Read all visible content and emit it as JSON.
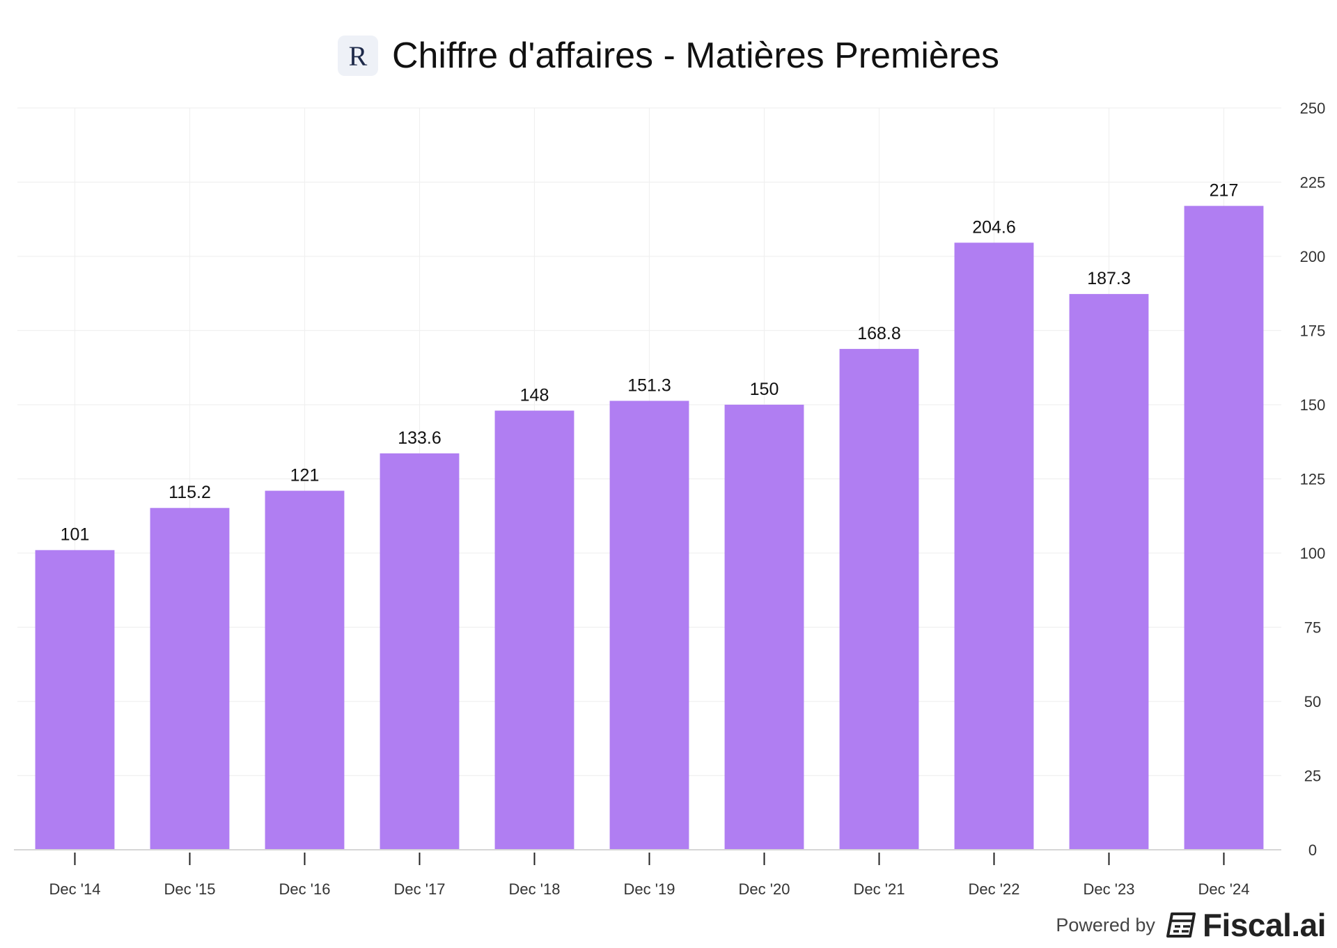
{
  "title": "Chiffre d'affaires - Matières Premières",
  "logo_letter": "R",
  "footer": {
    "powered_label": "Powered by",
    "brand": "Fiscal.ai",
    "logo_icon": "fiscal-ai-logo-icon"
  },
  "colors": {
    "bar": "#b07ef2",
    "grid": "#f0f0f0",
    "axis": "#d6d6d6",
    "tick_text": "#333333",
    "label_text": "#111111"
  },
  "chart_data": {
    "type": "bar",
    "categories": [
      "Dec '14",
      "Dec '15",
      "Dec '16",
      "Dec '17",
      "Dec '18",
      "Dec '19",
      "Dec '20",
      "Dec '21",
      "Dec '22",
      "Dec '23",
      "Dec '24"
    ],
    "series": [
      {
        "values": [
          101,
          115.2,
          121,
          133.6,
          148,
          151.3,
          150,
          168.8,
          204.6,
          187.3,
          217
        ],
        "labels": [
          "101",
          "115.2",
          "121",
          "133.6",
          "148",
          "151.3",
          "150",
          "168.8",
          "204.6",
          "187.3",
          "217"
        ]
      }
    ],
    "title": "Chiffre d'affaires - Matières Premières",
    "xlabel": "",
    "ylabel": "",
    "ylim": [
      0,
      250
    ],
    "yticks": [
      0,
      25,
      50,
      75,
      100,
      125,
      150,
      175,
      200,
      225,
      250
    ],
    "y_axis_position": "right",
    "grid": true,
    "legend": "none"
  }
}
